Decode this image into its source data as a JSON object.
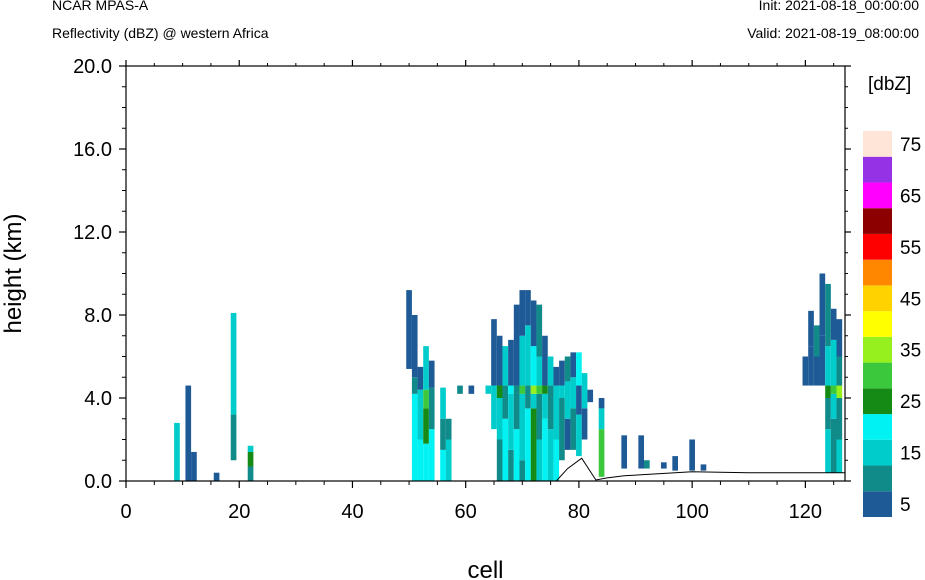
{
  "header": {
    "model": "NCAR MPAS-A",
    "field": "Reflectivity (dBZ) @ western Africa",
    "init": "Init: 2021-08-18_00:00:00",
    "valid": "Valid: 2021-08-19_08:00:00"
  },
  "chart_data": {
    "type": "heatmap",
    "xlabel": "cell",
    "ylabel": "height (km)",
    "xlim": [
      0,
      127
    ],
    "ylim": [
      0,
      20
    ],
    "x_ticks": [
      0,
      20,
      40,
      60,
      80,
      100,
      120
    ],
    "y_ticks": [
      "0.0",
      "4.0",
      "8.0",
      "12.0",
      "16.0",
      "20.0"
    ],
    "colorbar": {
      "unit": "[dbZ]",
      "levels": [
        5,
        10,
        15,
        20,
        25,
        30,
        35,
        40,
        45,
        50,
        55,
        60,
        65,
        70,
        75
      ],
      "labels": [
        "5",
        "15",
        "25",
        "35",
        "45",
        "55",
        "65",
        "75"
      ],
      "colors": [
        "#1e5a96",
        "#118a8a",
        "#00cccc",
        "#00f2f2",
        "#158a15",
        "#3cc83c",
        "#96f01e",
        "#ffff00",
        "#ffd200",
        "#ff8700",
        "#ff0000",
        "#8c0000",
        "#ff00ff",
        "#9632e6",
        "#ffe4d8"
      ]
    },
    "terrain_km": [
      [
        0,
        0
      ],
      [
        76,
        0
      ],
      [
        78,
        0.6
      ],
      [
        80.5,
        1.1
      ],
      [
        83,
        0.05
      ],
      [
        85,
        0.15
      ],
      [
        88,
        0.25
      ],
      [
        100,
        0.45
      ],
      [
        110,
        0.4
      ],
      [
        125,
        0.4
      ],
      [
        127,
        0.4
      ]
    ],
    "columns": [
      {
        "x": 9,
        "bands": [
          [
            0,
            2.8,
            "15"
          ]
        ]
      },
      {
        "x": 11,
        "bands": [
          [
            0,
            4.6,
            "5"
          ]
        ]
      },
      {
        "x": 12,
        "bands": [
          [
            0,
            1.4,
            "5"
          ]
        ]
      },
      {
        "x": 16,
        "bands": [
          [
            0,
            0.4,
            "5"
          ]
        ]
      },
      {
        "x": 19,
        "bands": [
          [
            1,
            3.2,
            "10"
          ],
          [
            3.2,
            8.1,
            "15"
          ]
        ]
      },
      {
        "x": 22,
        "bands": [
          [
            0,
            0.7,
            "10"
          ],
          [
            0.7,
            1.4,
            "25"
          ],
          [
            1.4,
            1.7,
            "15"
          ]
        ]
      },
      {
        "x": 50,
        "bands": [
          [
            5.4,
            9.2,
            "5"
          ]
        ]
      },
      {
        "x": 51,
        "bands": [
          [
            0,
            4.2,
            "20"
          ],
          [
            4.2,
            5.0,
            "10"
          ],
          [
            5.0,
            8.0,
            "5"
          ]
        ]
      },
      {
        "x": 52,
        "bands": [
          [
            0,
            2.0,
            "20"
          ],
          [
            2.0,
            4.4,
            "15"
          ],
          [
            4.4,
            5.5,
            "5"
          ]
        ]
      },
      {
        "x": 53,
        "bands": [
          [
            0,
            1.8,
            "20"
          ],
          [
            1.8,
            3.5,
            "25"
          ],
          [
            3.5,
            4.4,
            "30"
          ],
          [
            4.4,
            6.5,
            "15"
          ]
        ]
      },
      {
        "x": 54,
        "bands": [
          [
            0,
            2.5,
            "20"
          ],
          [
            2.5,
            4.5,
            "10"
          ],
          [
            4.5,
            5.8,
            "5"
          ]
        ]
      },
      {
        "x": 56,
        "bands": [
          [
            0,
            1.5,
            "20"
          ],
          [
            1.5,
            3.0,
            "10"
          ],
          [
            3.0,
            4.5,
            "15"
          ]
        ]
      },
      {
        "x": 57,
        "bands": [
          [
            0,
            2.0,
            "15"
          ],
          [
            2.0,
            3.0,
            "10"
          ]
        ]
      },
      {
        "x": 59,
        "bands": [
          [
            4.2,
            4.6,
            "10"
          ]
        ]
      },
      {
        "x": 61,
        "bands": [
          [
            4.2,
            4.6,
            "5"
          ]
        ]
      },
      {
        "x": 64,
        "bands": [
          [
            4.2,
            4.6,
            "15"
          ]
        ]
      },
      {
        "x": 65,
        "bands": [
          [
            2.5,
            4.6,
            "15"
          ],
          [
            4.6,
            7.8,
            "5"
          ]
        ]
      },
      {
        "x": 66,
        "bands": [
          [
            0,
            2.0,
            "10"
          ],
          [
            2.0,
            4.0,
            "15"
          ],
          [
            4.0,
            4.6,
            "25"
          ],
          [
            4.6,
            7.0,
            "5"
          ]
        ]
      },
      {
        "x": 67,
        "bands": [
          [
            0,
            3.0,
            "20"
          ],
          [
            3.0,
            4.6,
            "10"
          ],
          [
            4.6,
            6.5,
            "15"
          ]
        ]
      },
      {
        "x": 68,
        "bands": [
          [
            0,
            1.5,
            "10"
          ],
          [
            1.5,
            4.2,
            "15"
          ],
          [
            4.2,
            4.6,
            "20"
          ],
          [
            4.6,
            6.8,
            "5"
          ]
        ]
      },
      {
        "x": 69,
        "bands": [
          [
            0,
            2.5,
            "20"
          ],
          [
            2.5,
            4.6,
            "10"
          ],
          [
            4.6,
            8.5,
            "5"
          ]
        ]
      },
      {
        "x": 70,
        "bands": [
          [
            0,
            1.0,
            "10"
          ],
          [
            1.0,
            4.2,
            "15"
          ],
          [
            4.2,
            4.6,
            "30"
          ],
          [
            4.6,
            7.0,
            "15"
          ],
          [
            7.0,
            9.2,
            "5"
          ]
        ]
      },
      {
        "x": 71,
        "bands": [
          [
            0,
            3.5,
            "20"
          ],
          [
            3.5,
            4.6,
            "10"
          ],
          [
            4.6,
            7.5,
            "15"
          ],
          [
            7.5,
            9.2,
            "5"
          ]
        ]
      },
      {
        "x": 72,
        "bands": [
          [
            0,
            3.5,
            "25"
          ],
          [
            3.5,
            4.2,
            "15"
          ],
          [
            4.2,
            4.6,
            "35"
          ],
          [
            4.6,
            6.5,
            "20"
          ],
          [
            6.5,
            8.7,
            "5"
          ]
        ]
      },
      {
        "x": 73,
        "bands": [
          [
            0,
            2.0,
            "15"
          ],
          [
            2.0,
            4.2,
            "10"
          ],
          [
            4.2,
            4.6,
            "30"
          ],
          [
            4.6,
            6.0,
            "15"
          ],
          [
            6.0,
            8.5,
            "10"
          ]
        ]
      },
      {
        "x": 74,
        "bands": [
          [
            0,
            3.0,
            "20"
          ],
          [
            3.0,
            4.2,
            "15"
          ],
          [
            4.2,
            4.6,
            "25"
          ],
          [
            4.6,
            7.0,
            "5"
          ]
        ]
      },
      {
        "x": 75,
        "bands": [
          [
            0,
            2.5,
            "15"
          ],
          [
            2.5,
            4.6,
            "10"
          ],
          [
            4.6,
            6.0,
            "15"
          ]
        ]
      },
      {
        "x": 76,
        "bands": [
          [
            0,
            2.0,
            "20"
          ],
          [
            2.0,
            4.6,
            "15"
          ],
          [
            4.6,
            5.5,
            "5"
          ]
        ]
      },
      {
        "x": 77,
        "bands": [
          [
            1.0,
            4.0,
            "10"
          ],
          [
            4.0,
            4.6,
            "15"
          ],
          [
            4.6,
            5.8,
            "5"
          ]
        ]
      },
      {
        "x": 78,
        "bands": [
          [
            1.5,
            3.0,
            "5"
          ],
          [
            3.0,
            4.8,
            "15"
          ],
          [
            4.8,
            6.0,
            "10"
          ]
        ]
      },
      {
        "x": 79,
        "bands": [
          [
            1.5,
            3.5,
            "10"
          ],
          [
            3.5,
            5.0,
            "15"
          ],
          [
            5.0,
            6.2,
            "5"
          ]
        ]
      },
      {
        "x": 80,
        "bands": [
          [
            1.2,
            3.2,
            "15"
          ],
          [
            3.2,
            4.6,
            "5"
          ],
          [
            4.6,
            6.2,
            "20"
          ]
        ]
      },
      {
        "x": 81,
        "bands": [
          [
            2.0,
            3.5,
            "5"
          ],
          [
            3.5,
            5.2,
            "15"
          ]
        ]
      },
      {
        "x": 82,
        "bands": [
          [
            3.8,
            4.4,
            "5"
          ]
        ]
      },
      {
        "x": 84,
        "bands": [
          [
            0.2,
            2.5,
            "30"
          ],
          [
            2.5,
            3.5,
            "15"
          ],
          [
            3.5,
            4.0,
            "5"
          ]
        ]
      },
      {
        "x": 88,
        "bands": [
          [
            0.6,
            2.2,
            "5"
          ]
        ]
      },
      {
        "x": 91,
        "bands": [
          [
            0.6,
            2.2,
            "5"
          ]
        ]
      },
      {
        "x": 92,
        "bands": [
          [
            0.6,
            1.0,
            "10"
          ]
        ]
      },
      {
        "x": 95,
        "bands": [
          [
            0.6,
            0.9,
            "5"
          ]
        ]
      },
      {
        "x": 97,
        "bands": [
          [
            0.5,
            1.2,
            "5"
          ]
        ]
      },
      {
        "x": 100,
        "bands": [
          [
            0.5,
            2.0,
            "5"
          ]
        ]
      },
      {
        "x": 102,
        "bands": [
          [
            0.5,
            0.8,
            "5"
          ]
        ]
      },
      {
        "x": 120,
        "bands": [
          [
            4.6,
            6.0,
            "5"
          ]
        ]
      },
      {
        "x": 121,
        "bands": [
          [
            4.6,
            6.5,
            "5"
          ],
          [
            6.5,
            8.2,
            "5"
          ]
        ]
      },
      {
        "x": 122,
        "bands": [
          [
            4.6,
            6.0,
            "5"
          ],
          [
            6.0,
            7.5,
            "10"
          ]
        ]
      },
      {
        "x": 123,
        "bands": [
          [
            4.6,
            7.0,
            "5"
          ],
          [
            7.0,
            10.0,
            "5"
          ]
        ]
      },
      {
        "x": 124,
        "bands": [
          [
            0.4,
            2.5,
            "15"
          ],
          [
            2.5,
            4.0,
            "10"
          ],
          [
            4.0,
            4.6,
            "25"
          ],
          [
            4.6,
            6.5,
            "15"
          ],
          [
            6.5,
            9.5,
            "10"
          ]
        ]
      },
      {
        "x": 125,
        "bands": [
          [
            0.4,
            3.0,
            "10"
          ],
          [
            3.0,
            4.2,
            "15"
          ],
          [
            4.2,
            4.6,
            "30"
          ],
          [
            4.6,
            6.8,
            "15"
          ],
          [
            6.8,
            8.3,
            "5"
          ]
        ]
      },
      {
        "x": 126,
        "bands": [
          [
            0.4,
            2.0,
            "15"
          ],
          [
            2.0,
            4.0,
            "10"
          ],
          [
            4.0,
            4.6,
            "35"
          ],
          [
            4.6,
            6.0,
            "10"
          ],
          [
            6.0,
            7.8,
            "5"
          ]
        ]
      }
    ]
  }
}
